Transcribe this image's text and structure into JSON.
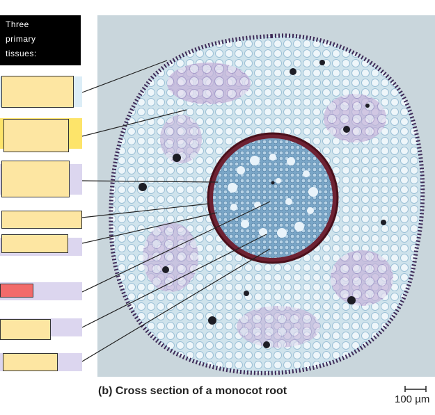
{
  "header": {
    "line1": "Three",
    "line2": "primary",
    "line3": "tissues:"
  },
  "caption": "(b) Cross section of a monocot root",
  "scale_bar": {
    "label": "100 µm"
  },
  "colors": {
    "band_blue": "#dcedf7",
    "band_yellow": "#fde46a",
    "band_lavender": "#dcd6ef",
    "label_fill": "#fde6a2",
    "label_red": "#f26b6b",
    "endodermis": "#7a1c24",
    "stele": "#5f8fb6"
  }
}
